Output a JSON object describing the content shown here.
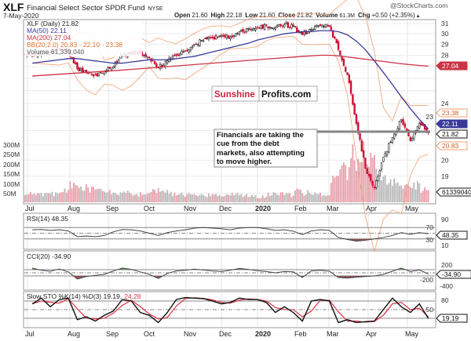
{
  "header": {
    "symbol": "XLF",
    "name": "Financial Select Sector SPDR Fund",
    "exchange": "NYSE",
    "date": "7-May-2020",
    "watermark": "@StockCharts.com",
    "open_label": "Open",
    "open": "21.60",
    "high_label": "High",
    "high": "22.18",
    "low_label": "Low",
    "low": "21.60",
    "close_label": "Close",
    "close": "21.82",
    "volume_label": "Volume",
    "volume": "61.3M",
    "chg_label": "Chg",
    "chg": "+0.50 (+2.35%)",
    "chg_arrow": "▲"
  },
  "legend": {
    "price": "XLF (Daily) 21.82",
    "ma50": "MA(50) 22.11",
    "ma200": "MA(200) 27.04",
    "bb": "BB(20,2.0) 20.83 - 22.10 - 23.38",
    "volume": "Volume 61,339,040",
    "rsi": "RSI(14) 48.35",
    "cci": "CCI(20) -34.90",
    "sto_prefix": "Slow STO %K(14) %D(3) 19.19,",
    "sto_d": "24.28"
  },
  "tags": {
    "ma200": "27.04",
    "bb_upper": "23.38",
    "ma50": "22.11",
    "close": "21.82",
    "bb_lower": "20.83",
    "volume": "61339040",
    "rsi": "48.35",
    "cci": "-34.90",
    "sto": "19.19"
  },
  "branding": {
    "sunshine": "Sunshine",
    "profits": "Profits.com"
  },
  "annotation": {
    "lines": [
      "Financials are taking the",
      "cue from the debt",
      "markets, also attempting",
      "to move higher."
    ]
  },
  "months": [
    "Jul",
    "Aug",
    "Sep",
    "Oct",
    "Nov",
    "Dec",
    "2020",
    "Feb",
    "Mar",
    "Apr",
    "May"
  ],
  "volume_ticks": [
    "300M",
    "250M",
    "200M",
    "150M",
    "100M",
    "50M"
  ],
  "rsi_ticks": [
    "90",
    "70",
    "30",
    "10"
  ],
  "cci_ticks": [
    "200",
    "-200",
    "-400"
  ],
  "sto_ticks": [
    "80",
    "50"
  ],
  "colors": {
    "up": "#222222",
    "down": "#cc1133",
    "ma50": "#3a3a9a",
    "ma200": "#cc3344",
    "bb": "#f0a070",
    "vol_up": "#b9b9b9",
    "vol_down": "#e6a0aa",
    "pos_fill": "#3d7a3d",
    "neg_fill": "#7a3030",
    "sunshine": "#cc2244"
  },
  "chart_data": {
    "type": "candlestick",
    "title": "XLF Financial Select Sector SPDR Fund (Daily)",
    "x_period": "Jul 2019 - 7 May 2020, weekly samples",
    "price_ticks": [
      31,
      30,
      29,
      28,
      24,
      23,
      20,
      19
    ],
    "close": [
      28.0,
      28.1,
      28.3,
      28.5,
      28.4,
      26.8,
      26.5,
      26.3,
      26.6,
      27.0,
      28.0,
      28.3,
      28.2,
      27.8,
      26.9,
      27.5,
      28.0,
      28.4,
      29.0,
      29.4,
      29.6,
      29.8,
      29.7,
      30.2,
      30.5,
      30.6,
      30.8,
      30.6,
      30.9,
      30.7,
      29.9,
      30.4,
      30.8,
      30.7,
      28.5,
      26.3,
      22.5,
      19.5,
      18.3,
      20.2,
      21.5,
      22.8,
      21.3,
      22.5,
      21.82
    ],
    "ma50": [
      27.3,
      27.4,
      27.5,
      27.6,
      27.7,
      27.7,
      27.6,
      27.5,
      27.4,
      27.3,
      27.3,
      27.4,
      27.5,
      27.6,
      27.6,
      27.6,
      27.7,
      27.8,
      27.9,
      28.1,
      28.3,
      28.5,
      28.7,
      28.9,
      29.1,
      29.4,
      29.6,
      29.8,
      30.0,
      30.1,
      30.2,
      30.2,
      30.3,
      30.3,
      30.2,
      29.9,
      29.3,
      28.5,
      27.5,
      26.5,
      25.5,
      24.5,
      23.6,
      22.8,
      22.11
    ],
    "ma200": [
      26.2,
      26.25,
      26.3,
      26.35,
      26.4,
      26.45,
      26.5,
      26.55,
      26.6,
      26.65,
      26.7,
      26.76,
      26.82,
      26.88,
      26.94,
      27.0,
      27.06,
      27.12,
      27.18,
      27.24,
      27.3,
      27.36,
      27.42,
      27.48,
      27.54,
      27.6,
      27.66,
      27.72,
      27.78,
      27.84,
      27.9,
      27.95,
      28.0,
      28.0,
      27.95,
      27.85,
      27.75,
      27.65,
      27.55,
      27.45,
      27.35,
      27.25,
      27.17,
      27.1,
      27.04
    ],
    "volume_m": [
      45,
      40,
      38,
      42,
      55,
      95,
      80,
      70,
      55,
      50,
      45,
      48,
      42,
      45,
      60,
      50,
      42,
      40,
      38,
      36,
      35,
      40,
      38,
      40,
      35,
      30,
      28,
      40,
      42,
      38,
      55,
      48,
      40,
      42,
      110,
      160,
      230,
      250,
      200,
      140,
      110,
      95,
      80,
      85,
      61.3
    ],
    "rsi": [
      62,
      63,
      60,
      62,
      58,
      38,
      40,
      38,
      42,
      55,
      63,
      62,
      58,
      50,
      42,
      52,
      58,
      62,
      68,
      70,
      68,
      66,
      62,
      68,
      70,
      70,
      66,
      60,
      62,
      57,
      45,
      58,
      62,
      60,
      35,
      28,
      22,
      25,
      30,
      35,
      42,
      52,
      46,
      52,
      48.35
    ],
    "cci": [
      150,
      80,
      50,
      120,
      30,
      -200,
      -120,
      -80,
      -50,
      60,
      150,
      110,
      30,
      -50,
      -180,
      -20,
      60,
      80,
      120,
      90,
      60,
      40,
      80,
      140,
      110,
      70,
      40,
      0,
      40,
      30,
      -150,
      60,
      80,
      50,
      -150,
      -170,
      -140,
      -120,
      -100,
      -50,
      50,
      150,
      40,
      90,
      -34.9
    ],
    "sto_k": [
      70,
      90,
      60,
      85,
      90,
      15,
      25,
      10,
      30,
      45,
      85,
      80,
      40,
      30,
      5,
      40,
      85,
      92,
      90,
      88,
      80,
      70,
      75,
      90,
      85,
      85,
      75,
      40,
      60,
      40,
      10,
      80,
      85,
      80,
      5,
      15,
      5,
      8,
      10,
      50,
      90,
      60,
      40,
      70,
      19.19
    ]
  }
}
